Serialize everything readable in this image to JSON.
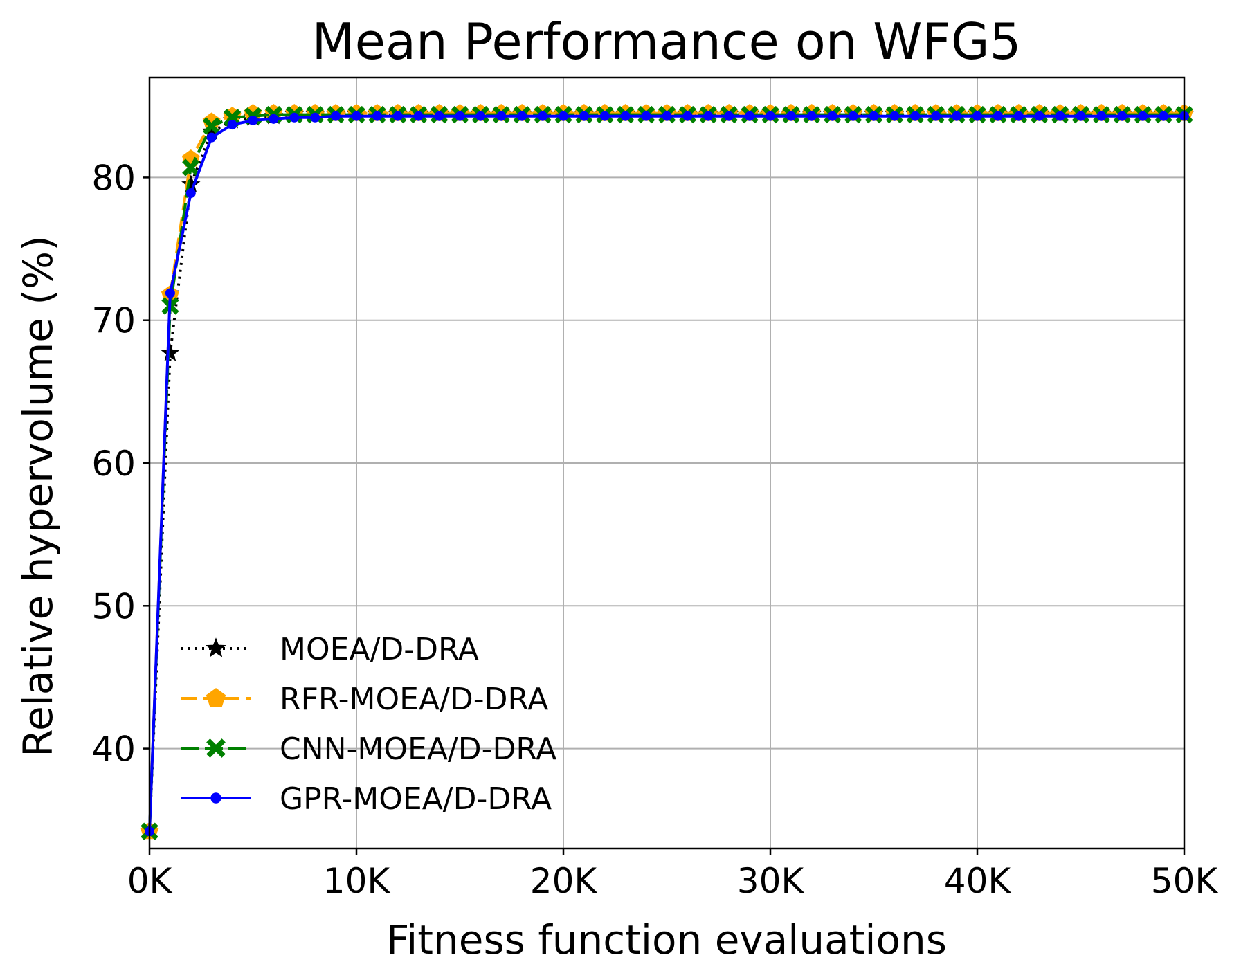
{
  "chart_data": {
    "type": "line",
    "title": "Mean Performance on WFG5",
    "xlabel": "Fitness function evaluations",
    "ylabel": "Relative hypervolume (%)",
    "xlim": [
      0,
      50000
    ],
    "ylim": [
      33,
      87
    ],
    "xticks": [
      0,
      10000,
      20000,
      30000,
      40000,
      50000
    ],
    "xtick_labels": [
      "0K",
      "10K",
      "20K",
      "30K",
      "40K",
      "50K"
    ],
    "yticks": [
      40,
      50,
      60,
      70,
      80
    ],
    "ytick_labels": [
      "40",
      "50",
      "60",
      "70",
      "80"
    ],
    "grid": true,
    "legend_position": "lower-left",
    "x": [
      0,
      1000,
      2000,
      3000,
      4000,
      5000,
      6000,
      7000,
      8000,
      9000,
      10000,
      11000,
      12000,
      13000,
      14000,
      15000,
      16000,
      17000,
      18000,
      19000,
      20000,
      21000,
      22000,
      23000,
      24000,
      25000,
      26000,
      27000,
      28000,
      29000,
      30000,
      31000,
      32000,
      33000,
      34000,
      35000,
      36000,
      37000,
      38000,
      39000,
      40000,
      41000,
      42000,
      43000,
      44000,
      45000,
      46000,
      47000,
      48000,
      49000,
      50000
    ],
    "series": [
      {
        "name": "MOEA/D-DRA",
        "color": "#000000",
        "line_style": "dotted",
        "marker": "star",
        "values": [
          34.2,
          67.7,
          79.5,
          83.2,
          84.0,
          84.2,
          84.3,
          84.4,
          84.4,
          84.4,
          84.4,
          84.4,
          84.4,
          84.4,
          84.4,
          84.4,
          84.4,
          84.4,
          84.4,
          84.4,
          84.4,
          84.4,
          84.4,
          84.4,
          84.4,
          84.4,
          84.4,
          84.4,
          84.4,
          84.4,
          84.4,
          84.4,
          84.4,
          84.4,
          84.4,
          84.4,
          84.4,
          84.4,
          84.4,
          84.4,
          84.4,
          84.4,
          84.4,
          84.4,
          84.4,
          84.4,
          84.4,
          84.4,
          84.4,
          84.4,
          84.4
        ]
      },
      {
        "name": "RFR-MOEA/D-DRA",
        "color": "#FFA500",
        "line_style": "dashed",
        "marker": "pentagon",
        "values": [
          34.2,
          71.8,
          81.3,
          83.9,
          84.3,
          84.5,
          84.5,
          84.5,
          84.5,
          84.5,
          84.5,
          84.5,
          84.5,
          84.5,
          84.5,
          84.5,
          84.5,
          84.5,
          84.5,
          84.5,
          84.5,
          84.5,
          84.5,
          84.5,
          84.5,
          84.5,
          84.5,
          84.5,
          84.5,
          84.5,
          84.5,
          84.5,
          84.5,
          84.5,
          84.5,
          84.5,
          84.5,
          84.5,
          84.5,
          84.5,
          84.5,
          84.5,
          84.5,
          84.5,
          84.5,
          84.5,
          84.5,
          84.5,
          84.5,
          84.5,
          84.5
        ]
      },
      {
        "name": "CNN-MOEA/D-DRA",
        "color": "#008000",
        "line_style": "dashdot",
        "marker": "x",
        "values": [
          34.2,
          71.0,
          80.7,
          83.6,
          84.2,
          84.3,
          84.4,
          84.4,
          84.4,
          84.4,
          84.4,
          84.4,
          84.4,
          84.4,
          84.4,
          84.4,
          84.4,
          84.4,
          84.4,
          84.4,
          84.4,
          84.4,
          84.4,
          84.4,
          84.4,
          84.4,
          84.4,
          84.4,
          84.4,
          84.4,
          84.4,
          84.4,
          84.4,
          84.4,
          84.4,
          84.4,
          84.4,
          84.4,
          84.4,
          84.4,
          84.4,
          84.4,
          84.4,
          84.4,
          84.4,
          84.4,
          84.4,
          84.4,
          84.4,
          84.4,
          84.4
        ]
      },
      {
        "name": "GPR-MOEA/D-DRA",
        "color": "#0000FF",
        "line_style": "solid",
        "marker": "dot",
        "values": [
          34.2,
          71.9,
          78.9,
          82.8,
          83.7,
          84.0,
          84.1,
          84.2,
          84.2,
          84.3,
          84.3,
          84.3,
          84.3,
          84.3,
          84.3,
          84.3,
          84.3,
          84.3,
          84.3,
          84.3,
          84.3,
          84.3,
          84.3,
          84.3,
          84.3,
          84.3,
          84.3,
          84.3,
          84.3,
          84.3,
          84.3,
          84.3,
          84.3,
          84.3,
          84.3,
          84.3,
          84.3,
          84.3,
          84.3,
          84.3,
          84.3,
          84.3,
          84.3,
          84.3,
          84.3,
          84.3,
          84.3,
          84.3,
          84.3,
          84.3,
          84.3
        ]
      }
    ]
  }
}
